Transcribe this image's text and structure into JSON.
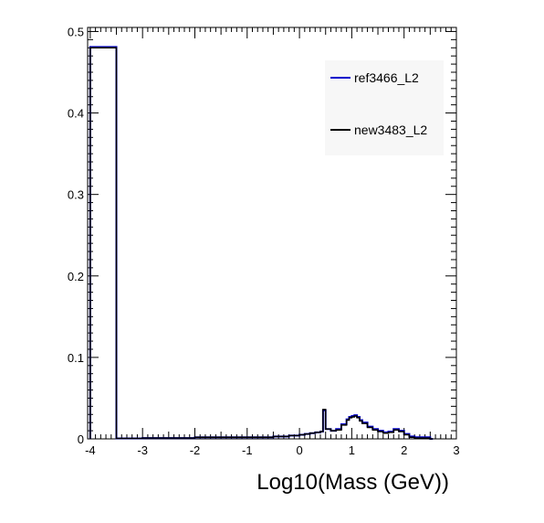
{
  "chart_data": {
    "type": "line",
    "title": "",
    "xlabel": "Log10(Mass (GeV))",
    "ylabel": "",
    "xlim": [
      -4.05,
      3.0
    ],
    "ylim": [
      0,
      0.505
    ],
    "x_ticks": [
      -4,
      -3,
      -2,
      -1,
      0,
      1,
      2,
      3
    ],
    "x_tick_labels": [
      "-4",
      "-3",
      "-2",
      "-1",
      "0",
      "1",
      "2",
      "3"
    ],
    "y_ticks": [
      0,
      0.1,
      0.2,
      0.3,
      0.4,
      0.5
    ],
    "y_tick_labels": [
      "0",
      "0.1",
      "0.2",
      "0.3",
      "0.4",
      "0.5"
    ],
    "grid": false,
    "legend_position": "top-right",
    "series": [
      {
        "name": "ref3466_L2",
        "color": "#0000cc",
        "x": [
          -4.0,
          -3.5,
          -3.0,
          -2.5,
          -2.0,
          -1.5,
          -1.0,
          -0.5,
          -0.2,
          0.0,
          0.1,
          0.2,
          0.3,
          0.4,
          0.45,
          0.5,
          0.6,
          0.7,
          0.8,
          0.9,
          0.95,
          1.0,
          1.05,
          1.1,
          1.15,
          1.2,
          1.3,
          1.4,
          1.5,
          1.6,
          1.7,
          1.8,
          1.9,
          2.0,
          2.1,
          2.2,
          2.5
        ],
        "y": [
          0.481,
          0.0005,
          0.001,
          0.001,
          0.002,
          0.002,
          0.002,
          0.003,
          0.004,
          0.005,
          0.006,
          0.007,
          0.008,
          0.009,
          0.035,
          0.012,
          0.01,
          0.012,
          0.018,
          0.024,
          0.027,
          0.028,
          0.029,
          0.027,
          0.023,
          0.02,
          0.015,
          0.012,
          0.01,
          0.008,
          0.009,
          0.012,
          0.01,
          0.006,
          0.003,
          0.002,
          0.0
        ]
      },
      {
        "name": "new3483_L2",
        "color": "#000000",
        "x": [
          -4.0,
          -3.5,
          -3.0,
          -2.5,
          -2.0,
          -1.5,
          -1.0,
          -0.5,
          -0.2,
          0.0,
          0.1,
          0.2,
          0.3,
          0.4,
          0.45,
          0.5,
          0.6,
          0.7,
          0.8,
          0.9,
          0.95,
          1.0,
          1.05,
          1.1,
          1.15,
          1.2,
          1.3,
          1.4,
          1.5,
          1.6,
          1.7,
          1.8,
          1.9,
          2.0,
          2.1,
          2.2,
          2.5
        ],
        "y": [
          0.48,
          0.0005,
          0.001,
          0.001,
          0.002,
          0.002,
          0.002,
          0.003,
          0.004,
          0.005,
          0.006,
          0.007,
          0.008,
          0.009,
          0.036,
          0.012,
          0.01,
          0.011,
          0.017,
          0.023,
          0.026,
          0.027,
          0.028,
          0.026,
          0.022,
          0.019,
          0.014,
          0.011,
          0.009,
          0.007,
          0.008,
          0.011,
          0.009,
          0.005,
          0.002,
          0.001,
          0.0
        ]
      }
    ]
  }
}
